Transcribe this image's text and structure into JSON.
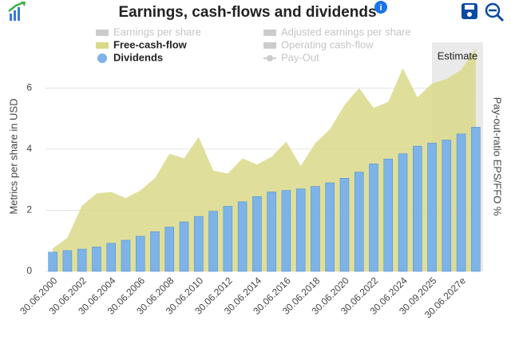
{
  "chart_data": {
    "type": "bar",
    "title": "Earnings, cash-flows and dividends",
    "y_axis_label": "Metrics per share in USD",
    "y2_axis_label": "Pay-out-ratio EPS/FFO %",
    "estimate_label": "Estimate",
    "categories": [
      "30.06.2000",
      null,
      "30.06.2002",
      null,
      "30.06.2004",
      null,
      "30.06.2006",
      null,
      "30.06.2008",
      null,
      "30.06.2010",
      null,
      "30.06.2012",
      null,
      "30.06.2014",
      null,
      "30.06.2016",
      null,
      "30.06.2018",
      null,
      "30.06.2020",
      null,
      "30.06.2022",
      null,
      "30.06.2024",
      null,
      "30.09.2025",
      null,
      "30.06.2027e",
      null
    ],
    "ylim": [
      0,
      7.5
    ],
    "yticks": [
      0,
      2,
      4,
      6
    ],
    "grid": true,
    "series": [
      {
        "name": "Earnings per share",
        "color": "#cccccc",
        "visible": false,
        "symbol": "rect"
      },
      {
        "name": "Adjusted earnings per share",
        "color": "#cccccc",
        "visible": false,
        "symbol": "rect"
      },
      {
        "name": "Free-cash-flow",
        "color": "#d9d98a",
        "visible": true,
        "symbol": "rect",
        "kind": "area",
        "values": [
          0.75,
          1.1,
          2.15,
          2.55,
          2.6,
          2.4,
          2.65,
          3.05,
          3.85,
          3.7,
          4.4,
          3.3,
          3.2,
          3.7,
          3.5,
          3.75,
          4.25,
          3.45,
          4.2,
          4.65,
          5.45,
          6.0,
          5.35,
          5.55,
          6.65,
          5.7,
          6.15,
          6.3,
          6.6,
          7.3
        ]
      },
      {
        "name": "Operating cash-flow",
        "color": "#cccccc",
        "visible": false,
        "symbol": "rect"
      },
      {
        "name": "Dividends",
        "color": "#7db3e8",
        "visible": true,
        "symbol": "circle",
        "kind": "bar",
        "values": [
          0.63,
          0.68,
          0.73,
          0.8,
          0.92,
          1.02,
          1.15,
          1.3,
          1.45,
          1.62,
          1.8,
          1.97,
          2.13,
          2.28,
          2.45,
          2.6,
          2.65,
          2.7,
          2.78,
          2.9,
          3.05,
          3.25,
          3.52,
          3.68,
          3.85,
          4.1,
          4.2,
          4.3,
          4.5,
          4.72
        ]
      },
      {
        "name": "Pay-Out",
        "color": "#cccccc",
        "visible": false,
        "symbol": "line"
      }
    ]
  }
}
